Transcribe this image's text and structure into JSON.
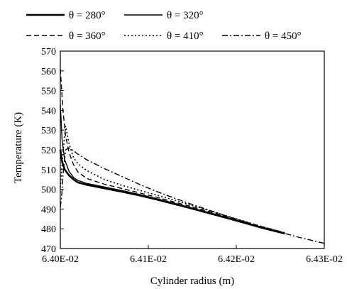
{
  "chart_data": {
    "type": "line",
    "xlabel": "Cylinder radius (m)",
    "ylabel": "Temperature (K)",
    "xlim": [
      0.064,
      0.0643
    ],
    "ylim": [
      470,
      570
    ],
    "x_tick_labels": [
      "6.40E-02",
      "6.41E-02",
      "6.42E-02",
      "6.43E-02"
    ],
    "x_tick_values": [
      0.064,
      0.0641,
      0.0642,
      0.0643
    ],
    "y_tick_values": [
      470,
      480,
      490,
      500,
      510,
      520,
      530,
      540,
      550,
      560,
      570
    ],
    "grid": false,
    "legend_position": "top",
    "series": [
      {
        "name": "θ = 280°",
        "style": "solid-thick",
        "x": [
          0.064,
          0.064002,
          0.064005,
          0.06401,
          0.064015,
          0.06402,
          0.06403,
          0.06405,
          0.06407,
          0.06409,
          0.06411,
          0.06413,
          0.06415,
          0.06417,
          0.06419,
          0.06421,
          0.06423,
          0.064255
        ],
        "y": [
          520.0,
          514.0,
          510.0,
          507.0,
          505.0,
          503.5,
          502.3,
          500.5,
          498.8,
          496.9,
          494.8,
          492.5,
          490.2,
          487.8,
          485.4,
          482.9,
          480.4,
          477.6
        ]
      },
      {
        "name": "θ = 320°",
        "style": "solid",
        "x": [
          0.064,
          0.064002,
          0.064005,
          0.06401,
          0.064015,
          0.06402,
          0.06403,
          0.06405,
          0.06407,
          0.06409,
          0.06411,
          0.06413,
          0.06415,
          0.06417,
          0.06419,
          0.06421,
          0.06423,
          0.064255
        ],
        "y": [
          543.0,
          525.0,
          515.0,
          509.0,
          506.0,
          504.5,
          503.0,
          501.2,
          499.4,
          497.4,
          495.2,
          492.9,
          490.5,
          488.1,
          485.6,
          483.1,
          480.6,
          477.8
        ]
      },
      {
        "name": "θ = 360°",
        "style": "dash",
        "x": [
          0.064,
          0.064003,
          0.064006,
          0.06401,
          0.064015,
          0.06402,
          0.06403,
          0.06405,
          0.06407,
          0.06409,
          0.06411,
          0.06413,
          0.06415,
          0.06417,
          0.06419,
          0.06421,
          0.06423,
          0.064255
        ],
        "y": [
          561.0,
          540.0,
          527.0,
          518.5,
          512.5,
          508.8,
          505.5,
          502.6,
          500.4,
          498.2,
          495.9,
          493.5,
          491.1,
          488.6,
          486.1,
          483.5,
          481.0,
          478.0
        ]
      },
      {
        "name": "θ = 410°",
        "style": "dot",
        "x": [
          0.064,
          0.064003,
          0.064006,
          0.06401,
          0.064015,
          0.06402,
          0.06403,
          0.06405,
          0.06407,
          0.06409,
          0.06411,
          0.06413,
          0.06415,
          0.06417,
          0.06419,
          0.06421,
          0.06423,
          0.064255
        ],
        "y": [
          501.0,
          518.0,
          532.0,
          523.0,
          516.0,
          513.0,
          509.5,
          505.0,
          502.0,
          499.5,
          497.0,
          494.5,
          491.8,
          489.1,
          486.4,
          483.7,
          481.0,
          478.0
        ]
      },
      {
        "name": "θ = 450°",
        "style": "dashdot",
        "x": [
          0.064,
          0.0640015,
          0.064003,
          0.064006,
          0.06401,
          0.064015,
          0.06402,
          0.06403,
          0.06405,
          0.06407,
          0.06409,
          0.06411,
          0.06413,
          0.06415,
          0.06417,
          0.06419,
          0.06421,
          0.06423,
          0.06425,
          0.06427,
          0.0643
        ],
        "y": [
          491.0,
          496.0,
          507.0,
          520.0,
          521.0,
          519.5,
          517.8,
          515.0,
          510.5,
          506.5,
          502.5,
          498.8,
          495.5,
          492.3,
          489.3,
          486.3,
          483.5,
          480.8,
          478.3,
          475.8,
          472.6
        ]
      }
    ]
  }
}
